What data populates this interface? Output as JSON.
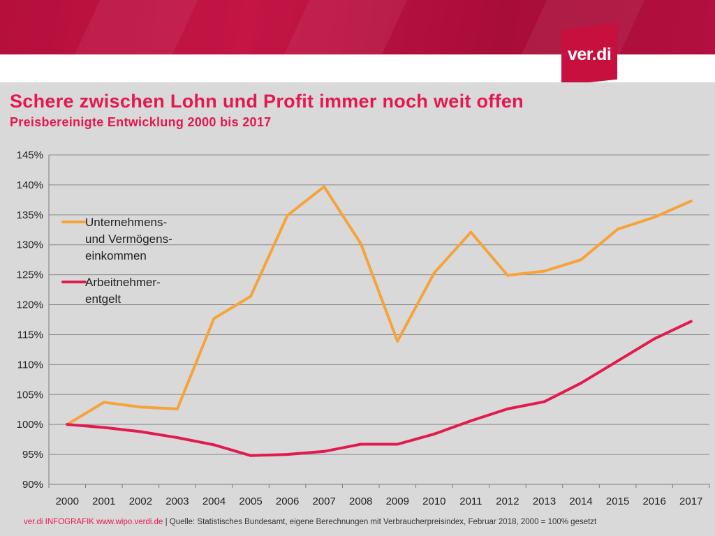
{
  "header": {
    "logo_text": "ver.di"
  },
  "heading": {
    "title": "Schere zwischen Lohn und Profit immer noch weit offen",
    "subtitle": "Preisbereinigte Entwicklung 2000 bis 2017"
  },
  "footer": {
    "brand": "ver.di INFOGRAFIK www.wipo.verdi.de",
    "source": " | Quelle: Statistisches Bundesamt, eigene Berechnungen mit Verbraucherpreisindex, Februar 2018, 2000 = 100% gesetzt"
  },
  "colors": {
    "brand_red": "#e5174f",
    "series_orange": "#f5a33a",
    "series_red": "#e11b4d",
    "plot_bg": "#d9d9d9"
  },
  "chart_data": {
    "type": "line",
    "title": "Schere zwischen Lohn und Profit immer noch weit offen",
    "subtitle": "Preisbereinigte Entwicklung 2000 bis 2017",
    "x": [
      "2000",
      "2001",
      "2002",
      "2003",
      "2004",
      "2005",
      "2006",
      "2007",
      "2008",
      "2009",
      "2010",
      "2011",
      "2012",
      "2013",
      "2014",
      "2015",
      "2016",
      "2017"
    ],
    "ylim": [
      90,
      145
    ],
    "yticks": [
      90,
      95,
      100,
      105,
      110,
      115,
      120,
      125,
      130,
      135,
      140,
      145
    ],
    "ytick_labels": [
      "90%",
      "95%",
      "100%",
      "105%",
      "110%",
      "115%",
      "120%",
      "125%",
      "130%",
      "135%",
      "140%",
      "145%"
    ],
    "grid": true,
    "legend_position": "upper-left inside plot",
    "series": [
      {
        "name": "Unternehmens- und Vermögens- einkommen",
        "legend_lines": [
          "Unternehmens-",
          "und Vermögens-",
          "einkommen"
        ],
        "color": "#f5a33a",
        "values": [
          100,
          103.7,
          102.9,
          102.6,
          117.7,
          121.4,
          134.9,
          139.7,
          130.2,
          113.9,
          125.3,
          132.1,
          124.9,
          125.6,
          127.5,
          132.6,
          134.6,
          137.3
        ]
      },
      {
        "name": "Arbeitnehmer- entgelt",
        "legend_lines": [
          "Arbeitnehmer-",
          "entgelt"
        ],
        "color": "#e11b4d",
        "values": [
          100,
          99.5,
          98.8,
          97.8,
          96.6,
          94.8,
          95.0,
          95.5,
          96.7,
          96.7,
          98.4,
          100.6,
          102.6,
          103.8,
          106.9,
          110.6,
          114.3,
          117.2
        ]
      }
    ]
  }
}
